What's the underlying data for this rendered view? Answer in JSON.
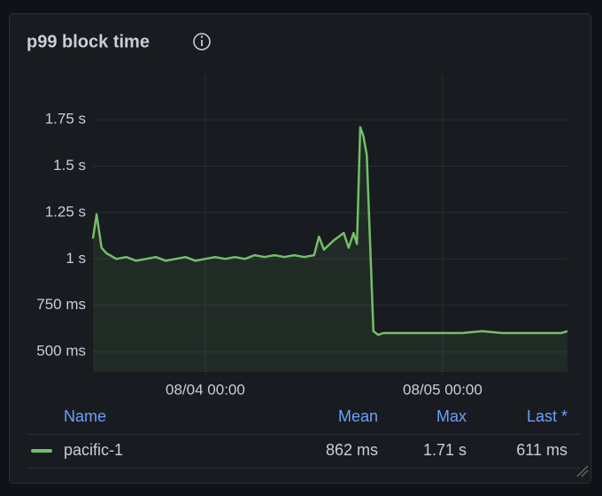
{
  "chart_data": {
    "type": "line",
    "title": "p99 block time",
    "x": [
      "08/03 12:38",
      "08/03 13:00",
      "08/03 13:30",
      "08/03 14:00",
      "08/03 15:00",
      "08/03 16:00",
      "08/03 17:00",
      "08/03 18:00",
      "08/03 19:00",
      "08/03 20:00",
      "08/03 21:00",
      "08/03 22:00",
      "08/03 23:00",
      "08/04 00:00",
      "08/04 01:00",
      "08/04 02:00",
      "08/04 03:00",
      "08/04 04:00",
      "08/04 05:00",
      "08/04 06:00",
      "08/04 07:00",
      "08/04 08:00",
      "08/04 09:00",
      "08/04 10:00",
      "08/04 11:00",
      "08/04 11:30",
      "08/04 12:00",
      "08/04 13:00",
      "08/04 14:00",
      "08/04 14:30",
      "08/04 15:00",
      "08/04 15:20",
      "08/04 15:40",
      "08/04 16:00",
      "08/04 16:20",
      "08/04 17:00",
      "08/04 17:30",
      "08/04 18:00",
      "08/04 20:00",
      "08/04 22:00",
      "08/05 00:00",
      "08/05 02:00",
      "08/05 04:00",
      "08/05 06:00",
      "08/05 08:00",
      "08/05 10:00",
      "08/05 12:00",
      "08/05 12:38"
    ],
    "series": [
      {
        "name": "pacific-1",
        "color": "#73bf69",
        "values": [
          1.11,
          1.24,
          1.06,
          1.03,
          1.0,
          1.01,
          0.99,
          1.0,
          1.01,
          0.99,
          1.0,
          1.01,
          0.99,
          1.0,
          1.01,
          1.0,
          1.01,
          1.0,
          1.02,
          1.01,
          1.02,
          1.01,
          1.02,
          1.01,
          1.02,
          1.12,
          1.05,
          1.1,
          1.14,
          1.06,
          1.14,
          1.08,
          1.71,
          1.66,
          1.56,
          0.61,
          0.59,
          0.6,
          0.6,
          0.6,
          0.6,
          0.6,
          0.61,
          0.6,
          0.6,
          0.6,
          0.6,
          0.61
        ]
      }
    ],
    "xlim": [
      "08/03 12:38",
      "08/05 12:38"
    ],
    "xticks": [
      "08/04 00:00",
      "08/05 00:00"
    ],
    "ylim": [
      0.39,
      1.99
    ],
    "yticks": [
      {
        "value": 0.5,
        "label": "500 ms"
      },
      {
        "value": 0.75,
        "label": "750 ms"
      },
      {
        "value": 1,
        "label": "1 s"
      },
      {
        "value": 1.25,
        "label": "1.25 s"
      },
      {
        "value": 1.5,
        "label": "1.5 s"
      },
      {
        "value": 1.75,
        "label": "1.75 s"
      }
    ],
    "grid": true,
    "legend_table": {
      "name_header": "Name",
      "columns": [
        "Mean",
        "Max",
        "Last *"
      ],
      "rows": [
        [
          "862 ms",
          "1.71 s",
          "611 ms"
        ]
      ]
    }
  }
}
